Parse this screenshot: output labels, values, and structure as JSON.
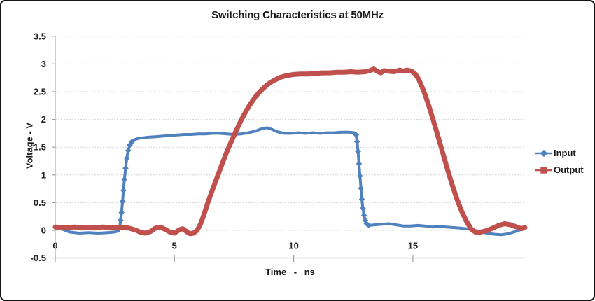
{
  "chart": {
    "title": "Switching Characteristics at 50MHz"
  },
  "chart_data": {
    "type": "line",
    "title": "Switching Characteristics at 50MHz",
    "xlabel": "Time - ns",
    "ylabel": "Voltage - V",
    "x_range": [
      0,
      19.7
    ],
    "y_range": [
      -0.5,
      3.5
    ],
    "x_ticks": [
      0,
      5,
      10,
      15
    ],
    "x_tick_labels": [
      "0",
      "5",
      "10",
      "15"
    ],
    "y_ticks": [
      -0.5,
      0,
      0.5,
      1,
      1.5,
      2,
      2.5,
      3,
      3.5
    ],
    "y_tick_labels": [
      "-0.5",
      "0",
      "0.5",
      "1",
      "1.5",
      "2",
      "2.5",
      "3",
      "3.5"
    ],
    "grid": "horizontal-dashed",
    "legend_position": "right",
    "series": [
      {
        "name": "Input",
        "color": "#4F81BD",
        "marker": "diamond",
        "line_width": 4,
        "marker_ranges": [
          [
            2.68,
            3.3
          ],
          [
            12.58,
            13.18
          ]
        ],
        "points": [
          [
            0.0,
            0.04
          ],
          [
            0.3,
            0.02
          ],
          [
            0.6,
            -0.03
          ],
          [
            1.0,
            -0.05
          ],
          [
            1.4,
            -0.04
          ],
          [
            1.8,
            -0.05
          ],
          [
            2.2,
            -0.04
          ],
          [
            2.5,
            -0.03
          ],
          [
            2.65,
            -0.01
          ],
          [
            2.7,
            0.05
          ],
          [
            2.74,
            0.18
          ],
          [
            2.78,
            0.32
          ],
          [
            2.82,
            0.52
          ],
          [
            2.86,
            0.72
          ],
          [
            2.9,
            0.92
          ],
          [
            2.95,
            1.12
          ],
          [
            3.0,
            1.3
          ],
          [
            3.06,
            1.44
          ],
          [
            3.13,
            1.54
          ],
          [
            3.22,
            1.6
          ],
          [
            3.35,
            1.64
          ],
          [
            3.5,
            1.66
          ],
          [
            3.7,
            1.67
          ],
          [
            3.9,
            1.68
          ],
          [
            4.2,
            1.69
          ],
          [
            4.5,
            1.7
          ],
          [
            4.8,
            1.71
          ],
          [
            5.1,
            1.72
          ],
          [
            5.4,
            1.73
          ],
          [
            5.7,
            1.73
          ],
          [
            6.0,
            1.74
          ],
          [
            6.3,
            1.74
          ],
          [
            6.6,
            1.75
          ],
          [
            6.9,
            1.75
          ],
          [
            7.2,
            1.74
          ],
          [
            7.5,
            1.73
          ],
          [
            7.8,
            1.74
          ],
          [
            8.1,
            1.76
          ],
          [
            8.4,
            1.79
          ],
          [
            8.7,
            1.84
          ],
          [
            8.9,
            1.85
          ],
          [
            9.1,
            1.82
          ],
          [
            9.3,
            1.78
          ],
          [
            9.6,
            1.75
          ],
          [
            9.9,
            1.75
          ],
          [
            10.2,
            1.76
          ],
          [
            10.5,
            1.75
          ],
          [
            10.8,
            1.76
          ],
          [
            11.1,
            1.75
          ],
          [
            11.4,
            1.76
          ],
          [
            11.7,
            1.76
          ],
          [
            12.0,
            1.77
          ],
          [
            12.3,
            1.77
          ],
          [
            12.55,
            1.76
          ],
          [
            12.62,
            1.72
          ],
          [
            12.66,
            1.6
          ],
          [
            12.7,
            1.42
          ],
          [
            12.74,
            1.2
          ],
          [
            12.78,
            0.98
          ],
          [
            12.82,
            0.76
          ],
          [
            12.86,
            0.56
          ],
          [
            12.9,
            0.4
          ],
          [
            12.95,
            0.27
          ],
          [
            13.0,
            0.18
          ],
          [
            13.06,
            0.12
          ],
          [
            13.15,
            0.09
          ],
          [
            13.4,
            0.1
          ],
          [
            13.7,
            0.11
          ],
          [
            14.0,
            0.12
          ],
          [
            14.3,
            0.1
          ],
          [
            14.6,
            0.08
          ],
          [
            14.9,
            0.08
          ],
          [
            15.2,
            0.09
          ],
          [
            15.5,
            0.08
          ],
          [
            15.8,
            0.06
          ],
          [
            16.1,
            0.07
          ],
          [
            16.4,
            0.06
          ],
          [
            16.7,
            0.05
          ],
          [
            17.0,
            0.04
          ],
          [
            17.4,
            0.02
          ],
          [
            17.8,
            -0.02
          ],
          [
            18.1,
            -0.05
          ],
          [
            18.4,
            -0.07
          ],
          [
            18.7,
            -0.08
          ],
          [
            19.0,
            -0.06
          ],
          [
            19.3,
            -0.02
          ],
          [
            19.5,
            0.01
          ],
          [
            19.7,
            0.04
          ]
        ]
      },
      {
        "name": "Output",
        "color": "#C0504D",
        "marker": "square",
        "line_width": 7,
        "marker_ranges": [],
        "points": [
          [
            0.0,
            0.06
          ],
          [
            0.4,
            0.05
          ],
          [
            0.8,
            0.06
          ],
          [
            1.2,
            0.05
          ],
          [
            1.6,
            0.05
          ],
          [
            2.0,
            0.06
          ],
          [
            2.4,
            0.05
          ],
          [
            2.8,
            0.05
          ],
          [
            3.1,
            0.04
          ],
          [
            3.4,
            0.0
          ],
          [
            3.6,
            -0.04
          ],
          [
            3.8,
            -0.05
          ],
          [
            4.0,
            -0.02
          ],
          [
            4.2,
            0.04
          ],
          [
            4.4,
            0.06
          ],
          [
            4.6,
            0.02
          ],
          [
            4.8,
            -0.03
          ],
          [
            5.0,
            -0.05
          ],
          [
            5.2,
            0.01
          ],
          [
            5.35,
            0.03
          ],
          [
            5.5,
            -0.02
          ],
          [
            5.65,
            -0.06
          ],
          [
            5.8,
            -0.05
          ],
          [
            5.95,
            0.0
          ],
          [
            6.1,
            0.12
          ],
          [
            6.25,
            0.3
          ],
          [
            6.4,
            0.5
          ],
          [
            6.6,
            0.74
          ],
          [
            6.8,
            0.97
          ],
          [
            7.0,
            1.2
          ],
          [
            7.2,
            1.42
          ],
          [
            7.4,
            1.62
          ],
          [
            7.6,
            1.81
          ],
          [
            7.8,
            1.99
          ],
          [
            8.0,
            2.15
          ],
          [
            8.2,
            2.29
          ],
          [
            8.4,
            2.41
          ],
          [
            8.6,
            2.51
          ],
          [
            8.8,
            2.59
          ],
          [
            9.0,
            2.66
          ],
          [
            9.2,
            2.71
          ],
          [
            9.45,
            2.76
          ],
          [
            9.7,
            2.79
          ],
          [
            10.0,
            2.81
          ],
          [
            10.3,
            2.82
          ],
          [
            10.6,
            2.82
          ],
          [
            10.9,
            2.83
          ],
          [
            11.2,
            2.84
          ],
          [
            11.5,
            2.84
          ],
          [
            11.8,
            2.85
          ],
          [
            12.1,
            2.85
          ],
          [
            12.4,
            2.86
          ],
          [
            12.7,
            2.85
          ],
          [
            13.0,
            2.86
          ],
          [
            13.2,
            2.88
          ],
          [
            13.35,
            2.91
          ],
          [
            13.5,
            2.87
          ],
          [
            13.65,
            2.84
          ],
          [
            13.8,
            2.88
          ],
          [
            13.95,
            2.87
          ],
          [
            14.2,
            2.86
          ],
          [
            14.45,
            2.89
          ],
          [
            14.6,
            2.87
          ],
          [
            14.75,
            2.89
          ],
          [
            14.95,
            2.87
          ],
          [
            15.1,
            2.82
          ],
          [
            15.25,
            2.72
          ],
          [
            15.45,
            2.52
          ],
          [
            15.65,
            2.27
          ],
          [
            15.85,
            1.99
          ],
          [
            16.05,
            1.7
          ],
          [
            16.25,
            1.4
          ],
          [
            16.45,
            1.1
          ],
          [
            16.65,
            0.82
          ],
          [
            16.85,
            0.56
          ],
          [
            17.05,
            0.34
          ],
          [
            17.25,
            0.16
          ],
          [
            17.45,
            0.02
          ],
          [
            17.65,
            -0.04
          ],
          [
            17.85,
            -0.03
          ],
          [
            18.05,
            -0.01
          ],
          [
            18.3,
            0.03
          ],
          [
            18.6,
            0.09
          ],
          [
            18.85,
            0.12
          ],
          [
            19.1,
            0.1
          ],
          [
            19.35,
            0.06
          ],
          [
            19.55,
            0.03
          ],
          [
            19.7,
            0.05
          ]
        ]
      }
    ]
  }
}
